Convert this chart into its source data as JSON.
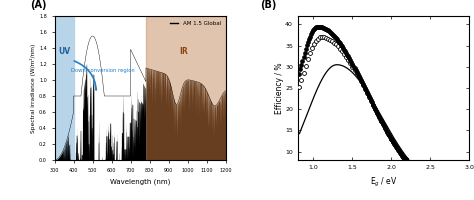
{
  "panel_A": {
    "xlabel": "Wavelength (nm)",
    "ylabel": "Spectral irradiance (W/m²/nm)",
    "xlim": [
      300,
      1200
    ],
    "ylim": [
      0.0,
      1.8
    ],
    "yticks": [
      0.0,
      0.2,
      0.4,
      0.6,
      0.8,
      1.0,
      1.2,
      1.4,
      1.6,
      1.8
    ],
    "xticks": [
      300,
      400,
      500,
      600,
      700,
      800,
      900,
      1000,
      1100,
      1200
    ],
    "uv_region": [
      300,
      400
    ],
    "vis_region": [
      400,
      780
    ],
    "ir_region": [
      780,
      1200
    ],
    "uv_color": "#b8d4e8",
    "ir_color": "#c9956a",
    "legend_label": "AM 1.5 Global",
    "uv_label": "UV",
    "ir_label": "IR",
    "arrow_text": "Down-conversion region",
    "arrow_color": "#1e7fcc",
    "panel_label": "(A)"
  },
  "panel_B": {
    "xlabel": "E$_g$ / eV",
    "ylabel": "Efficiency / %",
    "xlim": [
      0.8,
      3.0
    ],
    "ylim": [
      8,
      42
    ],
    "yticks": [
      10,
      15,
      20,
      25,
      30,
      35,
      40
    ],
    "xticks": [
      1.0,
      1.5,
      2.0,
      2.5,
      3.0
    ],
    "panel_label": "(B)"
  }
}
